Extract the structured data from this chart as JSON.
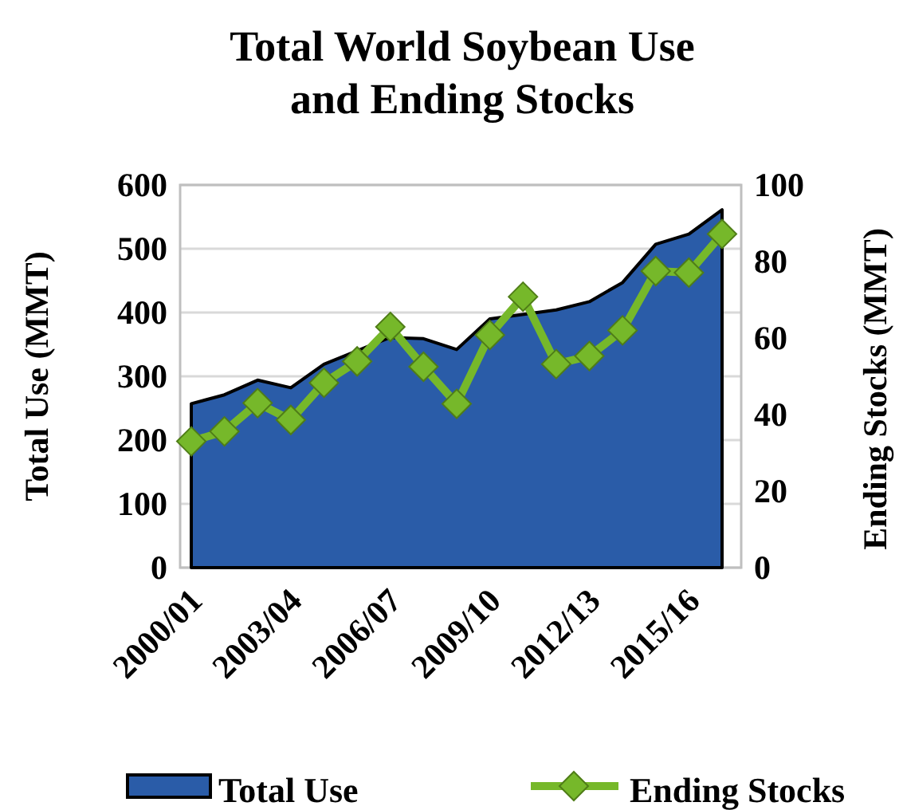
{
  "chart_data": {
    "type": "area",
    "title": "Total World Soybean Use and Ending Stocks",
    "ylabel": "Total Use (MMT)",
    "y2label": "Ending Stocks (MMT)",
    "categories": [
      "2000/01",
      null,
      null,
      "2003/04",
      null,
      null,
      "2006/07",
      null,
      null,
      "2009/10",
      null,
      null,
      "2012/13",
      null,
      null,
      "2015/16",
      null
    ],
    "series": [
      {
        "name": "Total Use",
        "color": "#2a5ca8",
        "values": [
          257,
          271,
          294,
          282,
          319,
          null,
          361,
          359,
          342,
          390,
          null,
          404,
          417,
          447,
          507,
          523,
          561
        ]
      },
      {
        "name": "Ending Stocks",
        "type": "line",
        "axis": "y2",
        "color": "#76b82a",
        "marker": "diamond",
        "values": [
          33,
          35.6,
          43,
          38.6,
          48.3,
          53.9,
          62.9,
          52.5,
          42.8,
          60.8,
          70.8,
          53.2,
          55.3,
          62,
          77.5,
          77.1,
          87.2
        ]
      }
    ],
    "ylim": [
      0,
      600
    ],
    "yticks": [
      0,
      100,
      200,
      300,
      400,
      500,
      600
    ],
    "y2lim": [
      0,
      100
    ],
    "y2ticks": [
      0,
      20,
      40,
      60,
      80,
      100
    ],
    "grid": "y",
    "legend": "bottom"
  }
}
